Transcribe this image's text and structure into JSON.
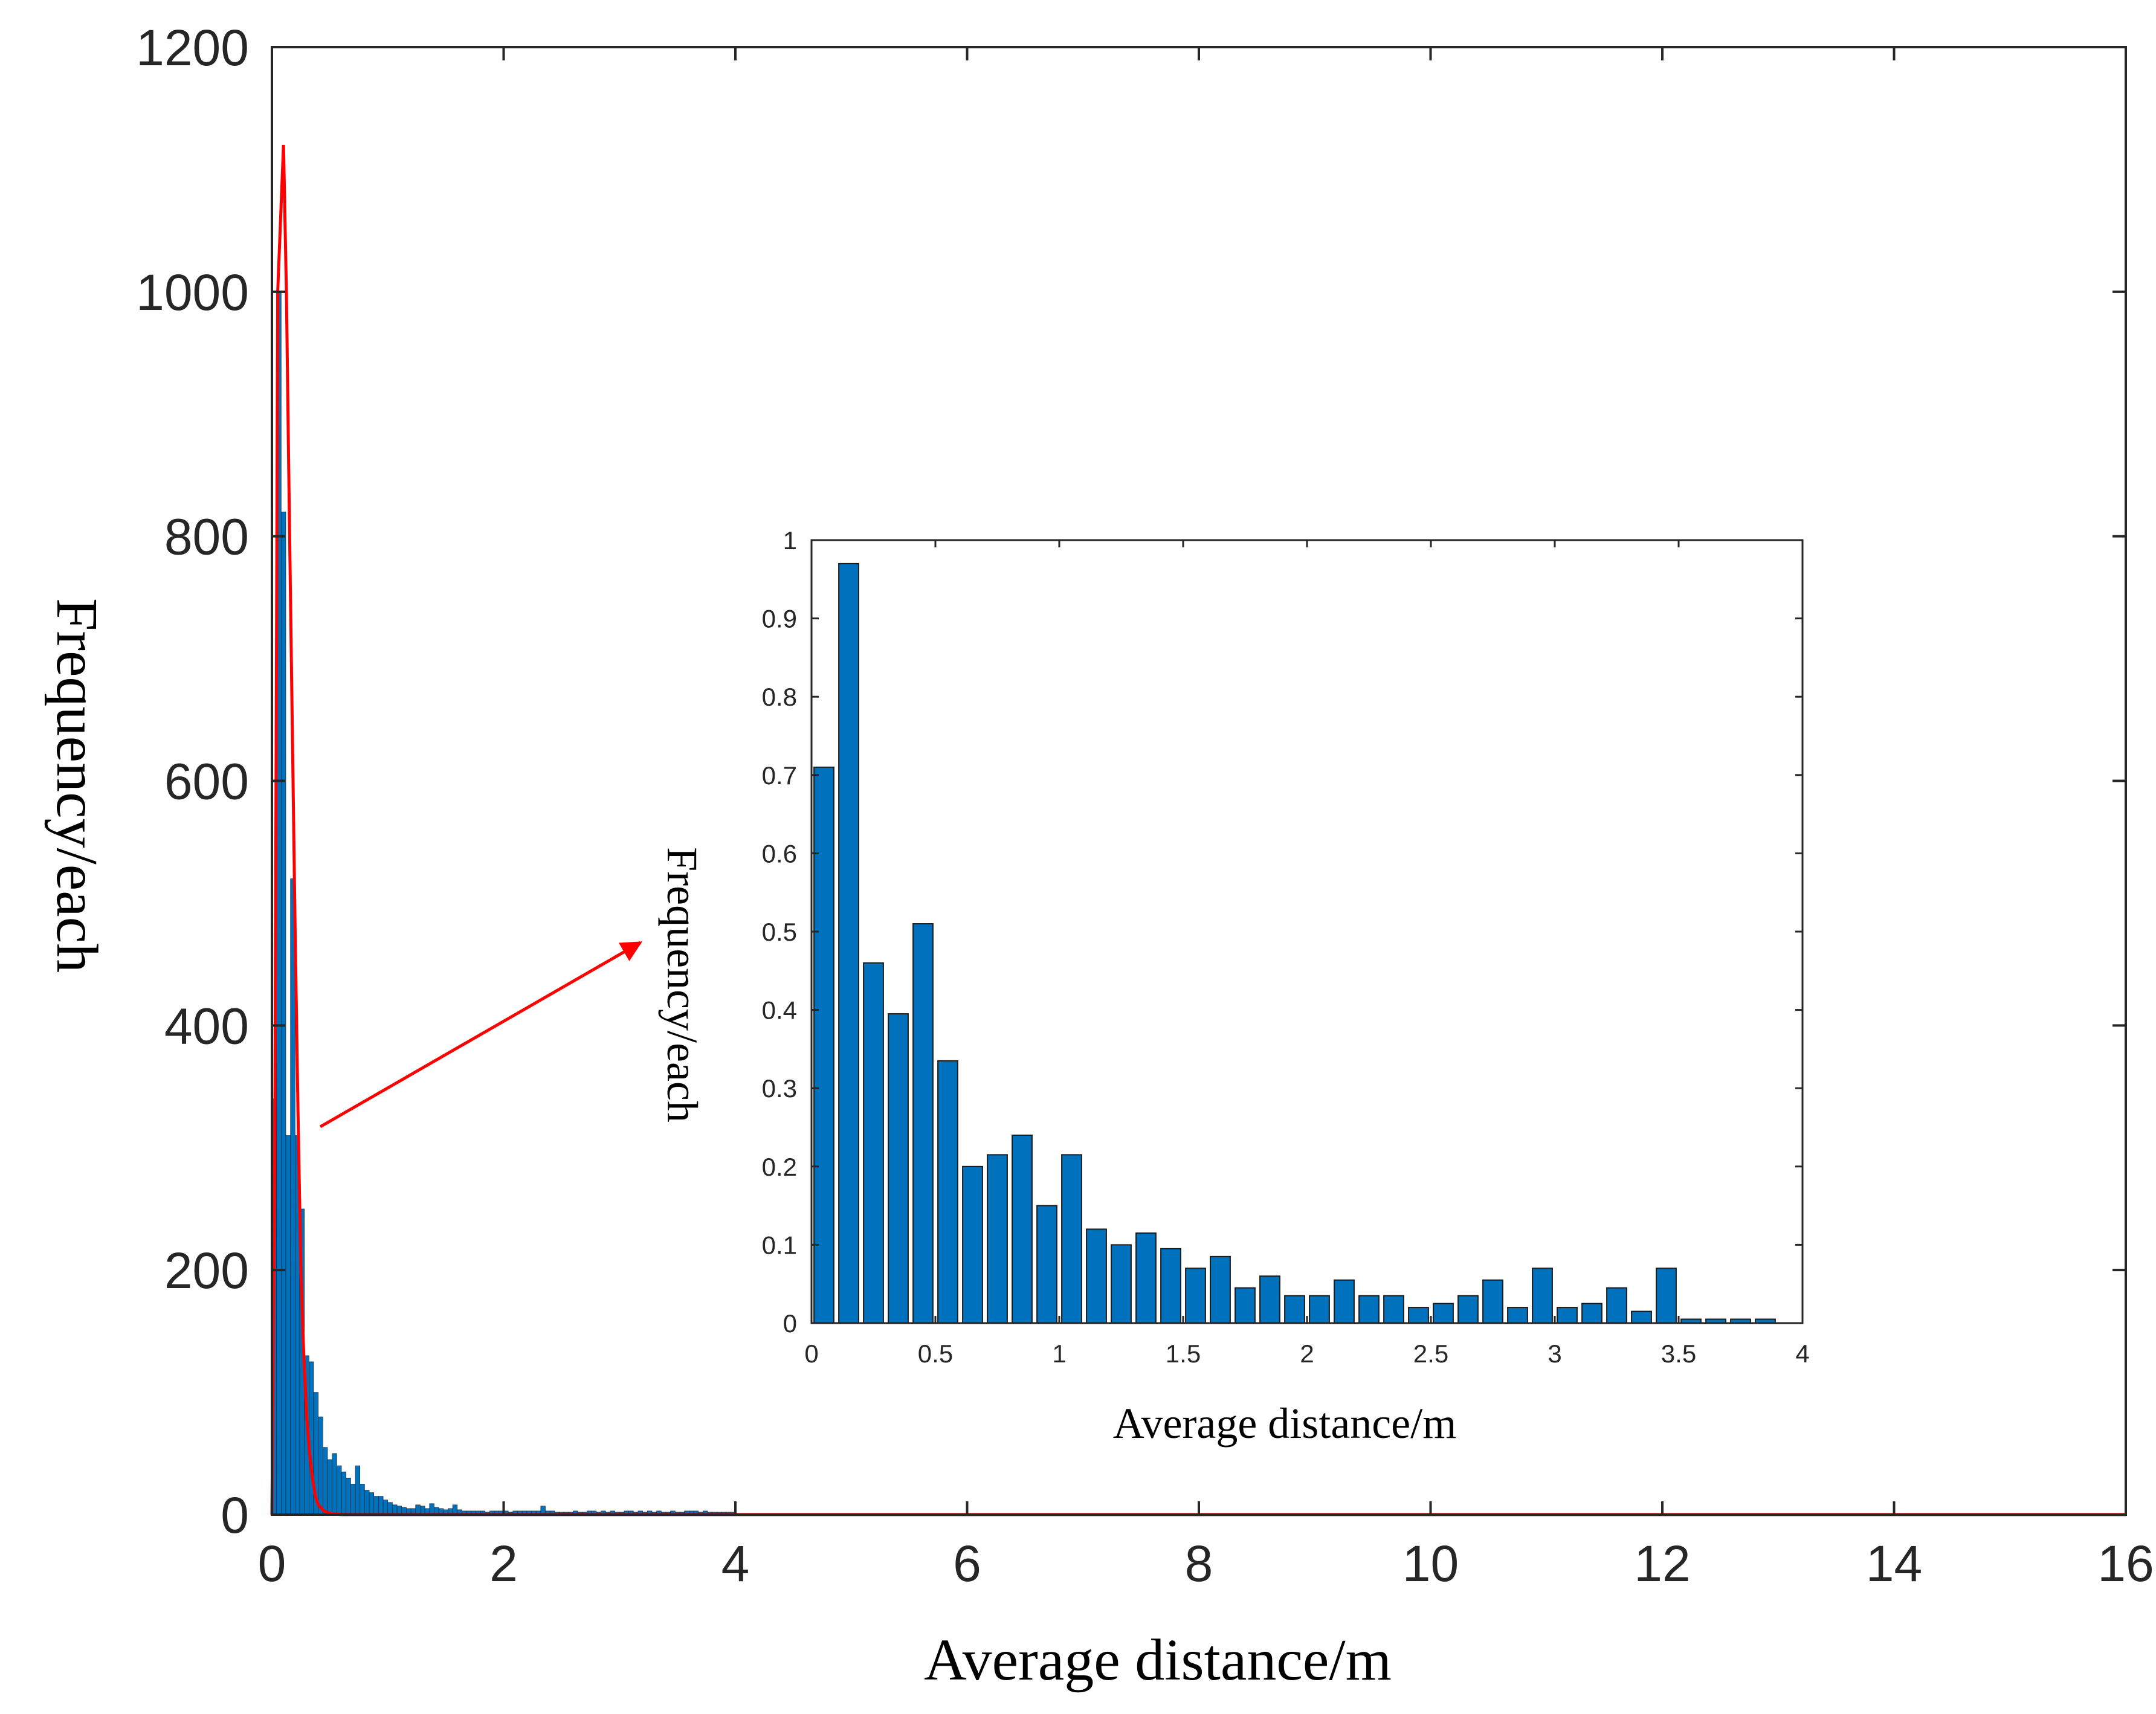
{
  "colors": {
    "bar": "#0072BD",
    "bar_edge": "#1a1a1a",
    "fit_line": "#FF0000",
    "arrow": "#FF0000",
    "axis": "#262626"
  },
  "chart_data": [
    {
      "type": "bar",
      "role": "main",
      "xlabel": "Average distance/m",
      "ylabel": "Frequency/each",
      "xlim": [
        0,
        16
      ],
      "ylim": [
        0,
        1200
      ],
      "xticks": [
        "0",
        "2",
        "4",
        "6",
        "8",
        "10",
        "12",
        "14",
        "16"
      ],
      "yticks": [
        "0",
        "200",
        "400",
        "600",
        "800",
        "1000",
        "1200"
      ],
      "bin_width": 0.04,
      "x": [
        0.02,
        0.06,
        0.1,
        0.14,
        0.18,
        0.22,
        0.26,
        0.3,
        0.34,
        0.38,
        0.42,
        0.46,
        0.5,
        0.54,
        0.58,
        0.62,
        0.66,
        0.7,
        0.74,
        0.78,
        0.82,
        0.86,
        0.9,
        0.94,
        0.98,
        1.02,
        1.06,
        1.1,
        1.14,
        1.18,
        1.22,
        1.26,
        1.3,
        1.34,
        1.38,
        1.42,
        1.46,
        1.5,
        1.54,
        1.58,
        1.62,
        1.66,
        1.7,
        1.74,
        1.78,
        1.82,
        1.86,
        1.9,
        1.94,
        1.98,
        2.02,
        2.06,
        2.1,
        2.14,
        2.18,
        2.22,
        2.26,
        2.3,
        2.34,
        2.38,
        2.42,
        2.46,
        2.5,
        2.54,
        2.58,
        2.62,
        2.66,
        2.7,
        2.74,
        2.78,
        2.82,
        2.86,
        2.9,
        2.94,
        2.98,
        3.02,
        3.06,
        3.1,
        3.14,
        3.18,
        3.22,
        3.26,
        3.3,
        3.34,
        3.38,
        3.42,
        3.46,
        3.5,
        3.54,
        3.58,
        3.62,
        3.66,
        3.7,
        3.74,
        3.78,
        3.82,
        3.86,
        3.9,
        3.94,
        3.98
      ],
      "values": [
        340,
        1000,
        820,
        310,
        520,
        310,
        250,
        130,
        125,
        100,
        80,
        55,
        45,
        50,
        40,
        35,
        30,
        25,
        40,
        25,
        20,
        18,
        15,
        15,
        12,
        10,
        8,
        7,
        6,
        5,
        5,
        8,
        7,
        5,
        9,
        6,
        5,
        4,
        5,
        8,
        4,
        3,
        3,
        3,
        3,
        3,
        2,
        3,
        3,
        3,
        3,
        2,
        3,
        3,
        3,
        3,
        3,
        3,
        7,
        3,
        3,
        2,
        2,
        2,
        2,
        3,
        2,
        2,
        3,
        3,
        2,
        3,
        2,
        3,
        2,
        2,
        3,
        3,
        2,
        3,
        2,
        3,
        2,
        3,
        2,
        2,
        3,
        2,
        2,
        3,
        3,
        3,
        2,
        3,
        2,
        2,
        2,
        2,
        2,
        2
      ],
      "fit_line": {
        "x": [
          0.0,
          0.025,
          0.05,
          0.075,
          0.1,
          0.125,
          0.15,
          0.175,
          0.2,
          0.225,
          0.25,
          0.275,
          0.3,
          0.325,
          0.35,
          0.375,
          0.4,
          0.45,
          0.5,
          0.6,
          0.8,
          1,
          2,
          4,
          8,
          12,
          16
        ],
        "y": [
          0,
          300,
          1000,
          1060,
          1120,
          1000,
          820,
          650,
          480,
          330,
          200,
          130,
          80,
          50,
          30,
          15,
          8,
          3,
          1,
          0,
          0,
          0,
          0,
          0,
          0,
          0,
          0
        ]
      }
    },
    {
      "type": "bar",
      "role": "inset",
      "xlabel": "Average distance/m",
      "ylabel": "Frequency/each",
      "xlim": [
        0,
        4
      ],
      "ylim": [
        0,
        1
      ],
      "xticks": [
        "0",
        "0.5",
        "1",
        "1.5",
        "2",
        "2.5",
        "3",
        "3.5",
        "4"
      ],
      "yticks": [
        "0",
        "0.1",
        "0.2",
        "0.3",
        "0.4",
        "0.5",
        "0.6",
        "0.7",
        "0.8",
        "0.9",
        "1"
      ],
      "bin_width": 0.1,
      "x": [
        0.05,
        0.15,
        0.25,
        0.35,
        0.45,
        0.55,
        0.65,
        0.75,
        0.85,
        0.95,
        1.05,
        1.15,
        1.25,
        1.35,
        1.45,
        1.55,
        1.65,
        1.75,
        1.85,
        1.95,
        2.05,
        2.15,
        2.25,
        2.35,
        2.45,
        2.55,
        2.65,
        2.75,
        2.85,
        2.95,
        3.05,
        3.15,
        3.25,
        3.35,
        3.45,
        3.55,
        3.65,
        3.75,
        3.85
      ],
      "values": [
        0.71,
        0.97,
        0.46,
        0.395,
        0.51,
        0.335,
        0.2,
        0.215,
        0.24,
        0.15,
        0.215,
        0.12,
        0.1,
        0.115,
        0.095,
        0.07,
        0.085,
        0.045,
        0.06,
        0.035,
        0.035,
        0.055,
        0.035,
        0.035,
        0.02,
        0.025,
        0.035,
        0.055,
        0.02,
        0.07,
        0.02,
        0.025,
        0.045,
        0.015,
        0.07,
        0.005,
        0.005,
        0.005,
        0.005
      ]
    }
  ]
}
